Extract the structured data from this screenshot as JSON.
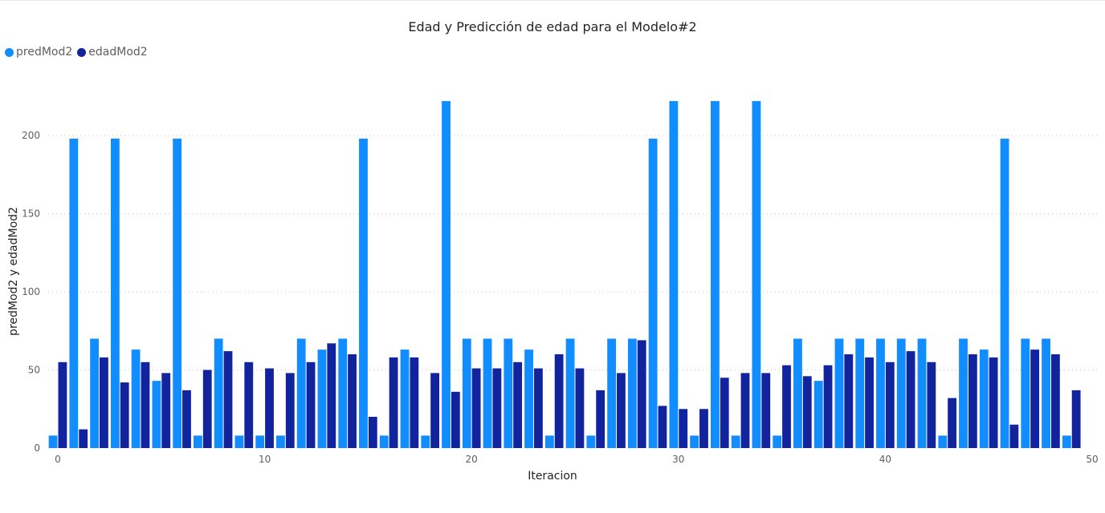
{
  "chart_data": {
    "type": "bar",
    "title": "Edad y Predicción de edad para el Modelo#2",
    "xlabel": "Iteracion",
    "ylabel": "predMod2 y edadMod2",
    "xlim": [
      0,
      50
    ],
    "ylim": [
      0,
      230
    ],
    "x_ticks": [
      "0",
      "10",
      "20",
      "30",
      "40",
      "50"
    ],
    "y_ticks": [
      "0",
      "50",
      "100",
      "150",
      "200"
    ],
    "grid": "horizontal dotted",
    "legend_position": "top-left",
    "x": [
      0,
      1,
      2,
      3,
      4,
      5,
      6,
      7,
      8,
      9,
      10,
      11,
      12,
      13,
      14,
      15,
      16,
      17,
      18,
      19,
      20,
      21,
      22,
      23,
      24,
      25,
      26,
      27,
      28,
      29,
      30,
      31,
      32,
      33,
      34,
      35,
      36,
      37,
      38,
      39,
      40,
      41,
      42,
      43,
      44,
      45,
      46,
      47,
      48,
      49
    ],
    "series": [
      {
        "name": "predMod2",
        "color": "#118dff",
        "values": [
          8,
          198,
          70,
          198,
          63,
          43,
          198,
          8,
          70,
          8,
          8,
          8,
          70,
          63,
          70,
          198,
          8,
          63,
          8,
          222,
          70,
          70,
          70,
          63,
          8,
          70,
          8,
          70,
          70,
          198,
          222,
          8,
          222,
          8,
          222,
          8,
          70,
          43,
          70,
          70,
          70,
          70,
          70,
          8,
          70,
          63,
          198,
          70,
          70,
          8
        ]
      },
      {
        "name": "edadMod2",
        "color": "#12239e",
        "values": [
          55,
          12,
          58,
          42,
          55,
          48,
          37,
          50,
          62,
          55,
          51,
          48,
          55,
          67,
          60,
          20,
          58,
          58,
          48,
          36,
          51,
          51,
          55,
          51,
          60,
          51,
          37,
          48,
          69,
          27,
          25,
          25,
          45,
          48,
          48,
          53,
          46,
          53,
          60,
          58,
          55,
          62,
          55,
          32,
          60,
          58,
          15,
          63,
          60,
          37
        ]
      }
    ]
  }
}
